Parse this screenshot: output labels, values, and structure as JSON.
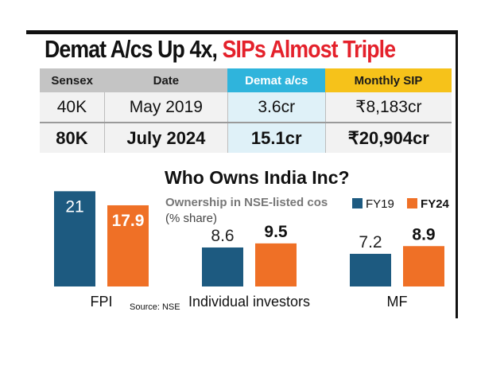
{
  "headline": {
    "part1": "Demat A/cs Up 4x, ",
    "part2": "SIPs Almost Triple"
  },
  "table": {
    "headers": [
      "Sensex",
      "Date",
      "Demat a/cs",
      "Monthly SIP"
    ],
    "rows": [
      [
        "40K",
        "May 2019",
        "3.6cr",
        "₹8,183cr"
      ],
      [
        "80K",
        "July 2024",
        "15.1cr",
        "₹20,904cr"
      ]
    ]
  },
  "chart_data": {
    "type": "bar",
    "title": "Who Owns India Inc?",
    "subtitle_bold": "Ownership in NSE-listed cos",
    "subtitle_unit": "(% share)",
    "categories": [
      "FPI",
      "Individual investors",
      "MF"
    ],
    "series": [
      {
        "name": "FY19",
        "values": [
          21,
          8.6,
          7.2
        ],
        "color": "#1d5a80"
      },
      {
        "name": "FY24",
        "values": [
          17.9,
          9.5,
          8.9
        ],
        "color": "#ef7026"
      }
    ],
    "source": "Source: NSE",
    "legend_position": "top-right",
    "grid": false
  }
}
